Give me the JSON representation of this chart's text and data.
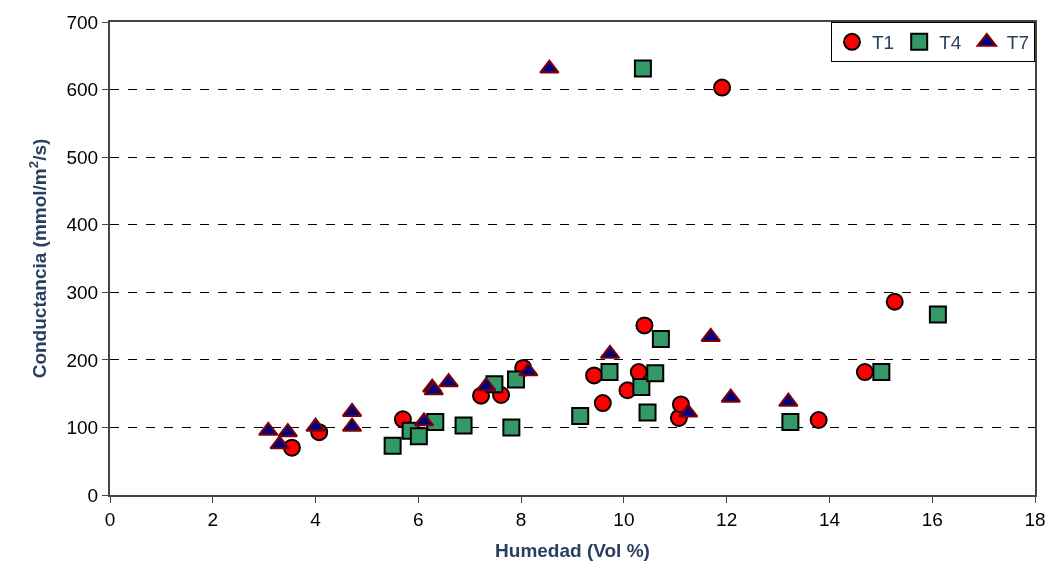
{
  "chart_data": {
    "type": "scatter",
    "xlabel": "Humedad (Vol %)",
    "ylabel": "Conductancia (mmol/m$^{2}$/s)",
    "xlim": [
      0,
      18
    ],
    "xticks": [
      0,
      2,
      4,
      6,
      8,
      10,
      12,
      14,
      16,
      18
    ],
    "ylim": [
      0,
      700
    ],
    "yticks": [
      0,
      100,
      200,
      300,
      400,
      500,
      600,
      700
    ],
    "grid": "y",
    "legend": "top right",
    "series": [
      {
        "name": "T1",
        "color": "#ff0000",
        "marker": "circle",
        "x": [
          3.54,
          4.07,
          5.7,
          5.85,
          7.22,
          7.61,
          8.04,
          9.42,
          9.59,
          10.07,
          10.29,
          10.4,
          11.07,
          11.11,
          11.91,
          13.79,
          14.69,
          15.27
        ],
        "values": [
          70,
          93,
          112,
          null,
          147,
          148,
          188,
          177,
          136,
          155,
          182,
          251,
          114,
          134,
          603,
          111,
          182,
          286
        ]
      },
      {
        "name": "T4",
        "color": "#339966",
        "marker": "square",
        "x": [
          5.5,
          5.85,
          6.01,
          6.33,
          6.88,
          7.48,
          7.81,
          7.9,
          9.15,
          9.72,
          10.34,
          10.37,
          10.46,
          10.61,
          10.72,
          13.24,
          15.01,
          16.11
        ],
        "values": [
          73,
          95,
          87,
          108,
          103,
          164,
          100,
          171,
          117,
          182,
          160,
          631,
          122,
          180,
          231,
          108,
          182,
          267
        ]
      },
      {
        "name": "T7",
        "color": "#000080",
        "marker": "triangle",
        "x": [
          3.08,
          3.3,
          3.46,
          4.0,
          4.71,
          4.71,
          6.11,
          6.27,
          6.3,
          6.59,
          7.32,
          8.14,
          8.55,
          9.73,
          11.25,
          11.69,
          12.08,
          13.2
        ],
        "values": [
          95,
          75,
          93,
          101,
          123,
          101,
          109,
          159,
          155,
          167,
          161,
          183,
          631,
          209,
          122,
          234,
          144,
          138
        ]
      }
    ]
  }
}
